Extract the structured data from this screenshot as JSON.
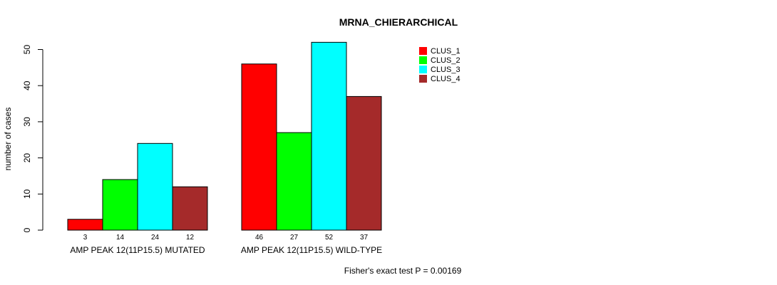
{
  "chart_data": {
    "type": "bar",
    "title": "MRNA_CHIERARCHICAL",
    "xlabel": "",
    "ylabel": "number of cases",
    "ylim": [
      0,
      52
    ],
    "yticks": [
      0,
      10,
      20,
      30,
      40,
      50
    ],
    "categories": [
      "AMP PEAK 12(11P15.5) MUTATED",
      "AMP PEAK 12(11P15.5) WILD-TYPE"
    ],
    "series": [
      {
        "name": "CLUS_1",
        "color": "#ff0000",
        "values": [
          3,
          46
        ]
      },
      {
        "name": "CLUS_2",
        "color": "#00ff00",
        "values": [
          14,
          27
        ]
      },
      {
        "name": "CLUS_3",
        "color": "#00ffff",
        "values": [
          24,
          52
        ]
      },
      {
        "name": "CLUS_4",
        "color": "#a52a2a",
        "values": [
          12,
          37
        ]
      }
    ],
    "legend_position": "top-right",
    "annotation": "Fisher's exact test P = 0.00169"
  }
}
